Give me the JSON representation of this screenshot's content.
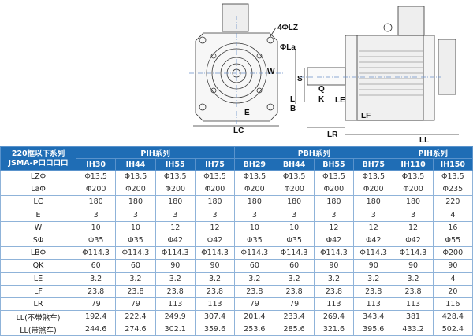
{
  "drawing": {
    "labels": {
      "lz": "4ΦLZ",
      "la": "ΦLa",
      "w": "W",
      "e": "E",
      "lc": "LC",
      "s": "S",
      "q": "Q",
      "k": "K",
      "l": "L",
      "b": "B",
      "le": "LE",
      "lf": "LF",
      "lr": "LR",
      "ll": "LL"
    }
  },
  "table": {
    "corner_line1": "220框以下系列",
    "corner_line2": "JSMA-P口口口口",
    "groups": [
      "PIH系列",
      "PBH系列",
      "PIH系列"
    ],
    "models": [
      "IH30",
      "IH44",
      "IH55",
      "IH75",
      "BH29",
      "BH44",
      "BH55",
      "BH75",
      "IH110",
      "IH150"
    ],
    "rows": [
      {
        "name": "LZΦ",
        "values": [
          "Φ13.5",
          "Φ13.5",
          "Φ13.5",
          "Φ13.5",
          "Φ13.5",
          "Φ13.5",
          "Φ13.5",
          "Φ13.5",
          "Φ13.5",
          "Φ13.5"
        ]
      },
      {
        "name": "LaΦ",
        "values": [
          "Φ200",
          "Φ200",
          "Φ200",
          "Φ200",
          "Φ200",
          "Φ200",
          "Φ200",
          "Φ200",
          "Φ200",
          "Φ235"
        ]
      },
      {
        "name": "LC",
        "values": [
          "180",
          "180",
          "180",
          "180",
          "180",
          "180",
          "180",
          "180",
          "180",
          "220"
        ]
      },
      {
        "name": "E",
        "values": [
          "3",
          "3",
          "3",
          "3",
          "3",
          "3",
          "3",
          "3",
          "3",
          "4"
        ]
      },
      {
        "name": "W",
        "values": [
          "10",
          "10",
          "12",
          "12",
          "10",
          "10",
          "12",
          "12",
          "12",
          "16"
        ]
      },
      {
        "name": "SΦ",
        "values": [
          "Φ35",
          "Φ35",
          "Φ42",
          "Φ42",
          "Φ35",
          "Φ35",
          "Φ42",
          "Φ42",
          "Φ42",
          "Φ55"
        ]
      },
      {
        "name": "LBΦ",
        "values": [
          "Φ114.3",
          "Φ114.3",
          "Φ114.3",
          "Φ114.3",
          "Φ114.3",
          "Φ114.3",
          "Φ114.3",
          "Φ114.3",
          "Φ114.3",
          "Φ200"
        ]
      },
      {
        "name": "QK",
        "values": [
          "60",
          "60",
          "90",
          "90",
          "60",
          "60",
          "90",
          "90",
          "90",
          "90"
        ]
      },
      {
        "name": "LE",
        "values": [
          "3.2",
          "3.2",
          "3.2",
          "3.2",
          "3.2",
          "3.2",
          "3.2",
          "3.2",
          "3.2",
          "4"
        ]
      },
      {
        "name": "LF",
        "values": [
          "23.8",
          "23.8",
          "23.8",
          "23.8",
          "23.8",
          "23.8",
          "23.8",
          "23.8",
          "23.8",
          "20"
        ]
      },
      {
        "name": "LR",
        "values": [
          "79",
          "79",
          "113",
          "113",
          "79",
          "79",
          "113",
          "113",
          "113",
          "116"
        ]
      },
      {
        "name": "LL(不带煞车)",
        "values": [
          "192.4",
          "222.4",
          "249.9",
          "307.4",
          "201.4",
          "233.4",
          "269.4",
          "343.4",
          "381",
          "428.4"
        ]
      },
      {
        "name": "LL(带煞车)",
        "values": [
          "244.6",
          "274.6",
          "302.1",
          "359.6",
          "253.6",
          "285.6",
          "321.6",
          "395.6",
          "433.2",
          "502.4"
        ]
      }
    ]
  },
  "colors": {
    "header_bg": "#1f6db5",
    "grid": "#8fb3d9"
  }
}
